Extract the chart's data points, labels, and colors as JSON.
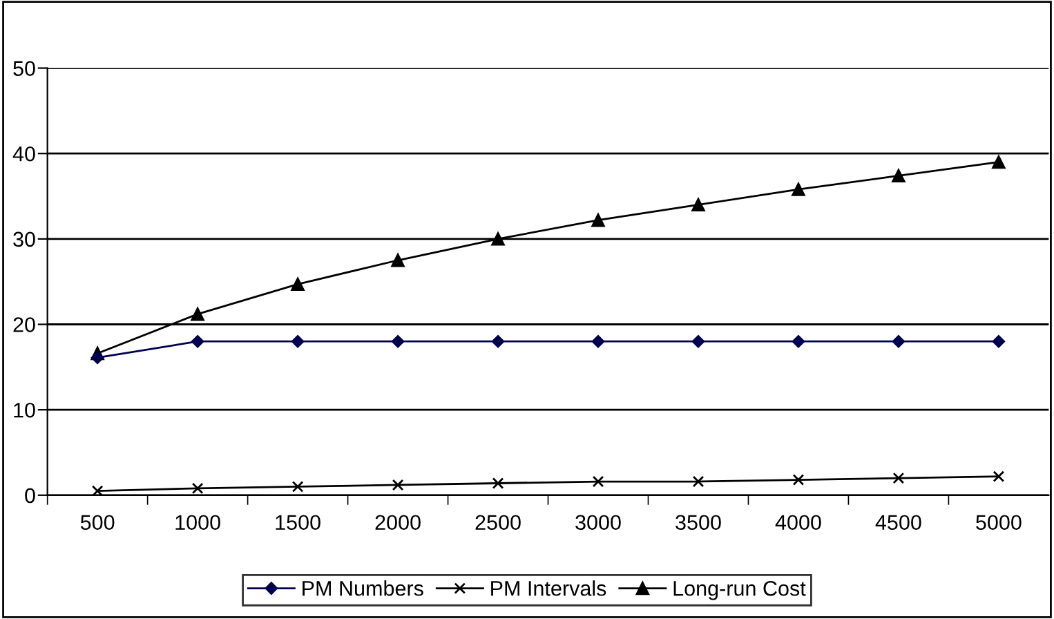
{
  "chart_data": {
    "type": "line",
    "categories": [
      "500",
      "1000",
      "1500",
      "2000",
      "2500",
      "3000",
      "3500",
      "4000",
      "4500",
      "5000"
    ],
    "series": [
      {
        "name": "PM Numbers",
        "color": "#000050",
        "marker": "diamond",
        "values": [
          16.1,
          18,
          18,
          18,
          18,
          18,
          18,
          18,
          18,
          18
        ]
      },
      {
        "name": "PM Intervals",
        "color": "#000000",
        "marker": "cross",
        "values": [
          0.5,
          0.8,
          1.0,
          1.2,
          1.4,
          1.6,
          1.6,
          1.8,
          2.0,
          2.2
        ]
      },
      {
        "name": "Long-run Cost",
        "color": "#000000",
        "marker": "triangle",
        "values": [
          16.6,
          21.2,
          24.7,
          27.5,
          30.0,
          32.2,
          34.0,
          35.8,
          37.4,
          39.0
        ]
      }
    ],
    "ylim": [
      0,
      50
    ],
    "yticks": [
      0,
      10,
      20,
      30,
      40,
      50
    ],
    "grid": "y",
    "legend": "bottom"
  }
}
